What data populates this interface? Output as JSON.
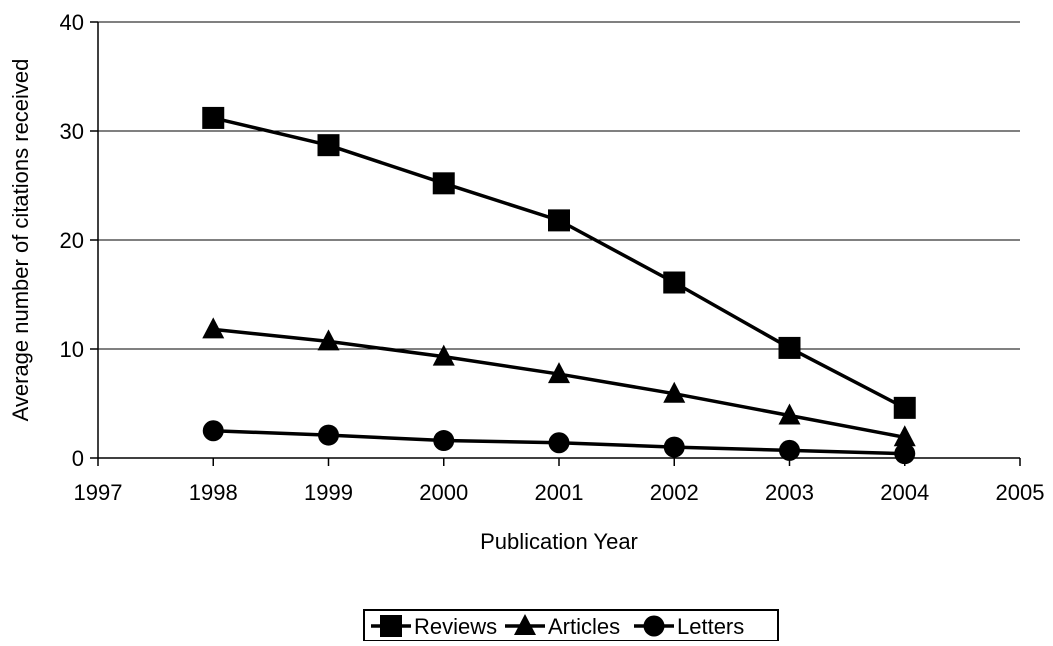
{
  "chart_data": {
    "type": "line",
    "title": "",
    "xlabel": "Publication Year",
    "ylabel": "Average number of citations received",
    "xlim": [
      1997,
      2005
    ],
    "ylim": [
      0,
      40
    ],
    "x_ticks": [
      1997,
      1998,
      1999,
      2000,
      2001,
      2002,
      2003,
      2004,
      2005
    ],
    "y_ticks": [
      0,
      10,
      20,
      30,
      40
    ],
    "grid": "horizontal",
    "legend_position": "bottom",
    "series": [
      {
        "name": "Reviews",
        "marker": "square",
        "color": "#000000",
        "x": [
          1998,
          1999,
          2000,
          2001,
          2002,
          2003,
          2004
        ],
        "values": [
          31.2,
          28.7,
          25.2,
          21.8,
          16.1,
          10.1,
          4.6
        ]
      },
      {
        "name": "Articles",
        "marker": "triangle",
        "color": "#000000",
        "x": [
          1998,
          1999,
          2000,
          2001,
          2002,
          2003,
          2004
        ],
        "values": [
          11.8,
          10.7,
          9.3,
          7.7,
          5.9,
          3.9,
          1.9
        ]
      },
      {
        "name": "Letters",
        "marker": "circle",
        "color": "#000000",
        "x": [
          1998,
          1999,
          2000,
          2001,
          2002,
          2003,
          2004
        ],
        "values": [
          2.5,
          2.1,
          1.6,
          1.4,
          1.0,
          0.7,
          0.4
        ]
      }
    ]
  }
}
